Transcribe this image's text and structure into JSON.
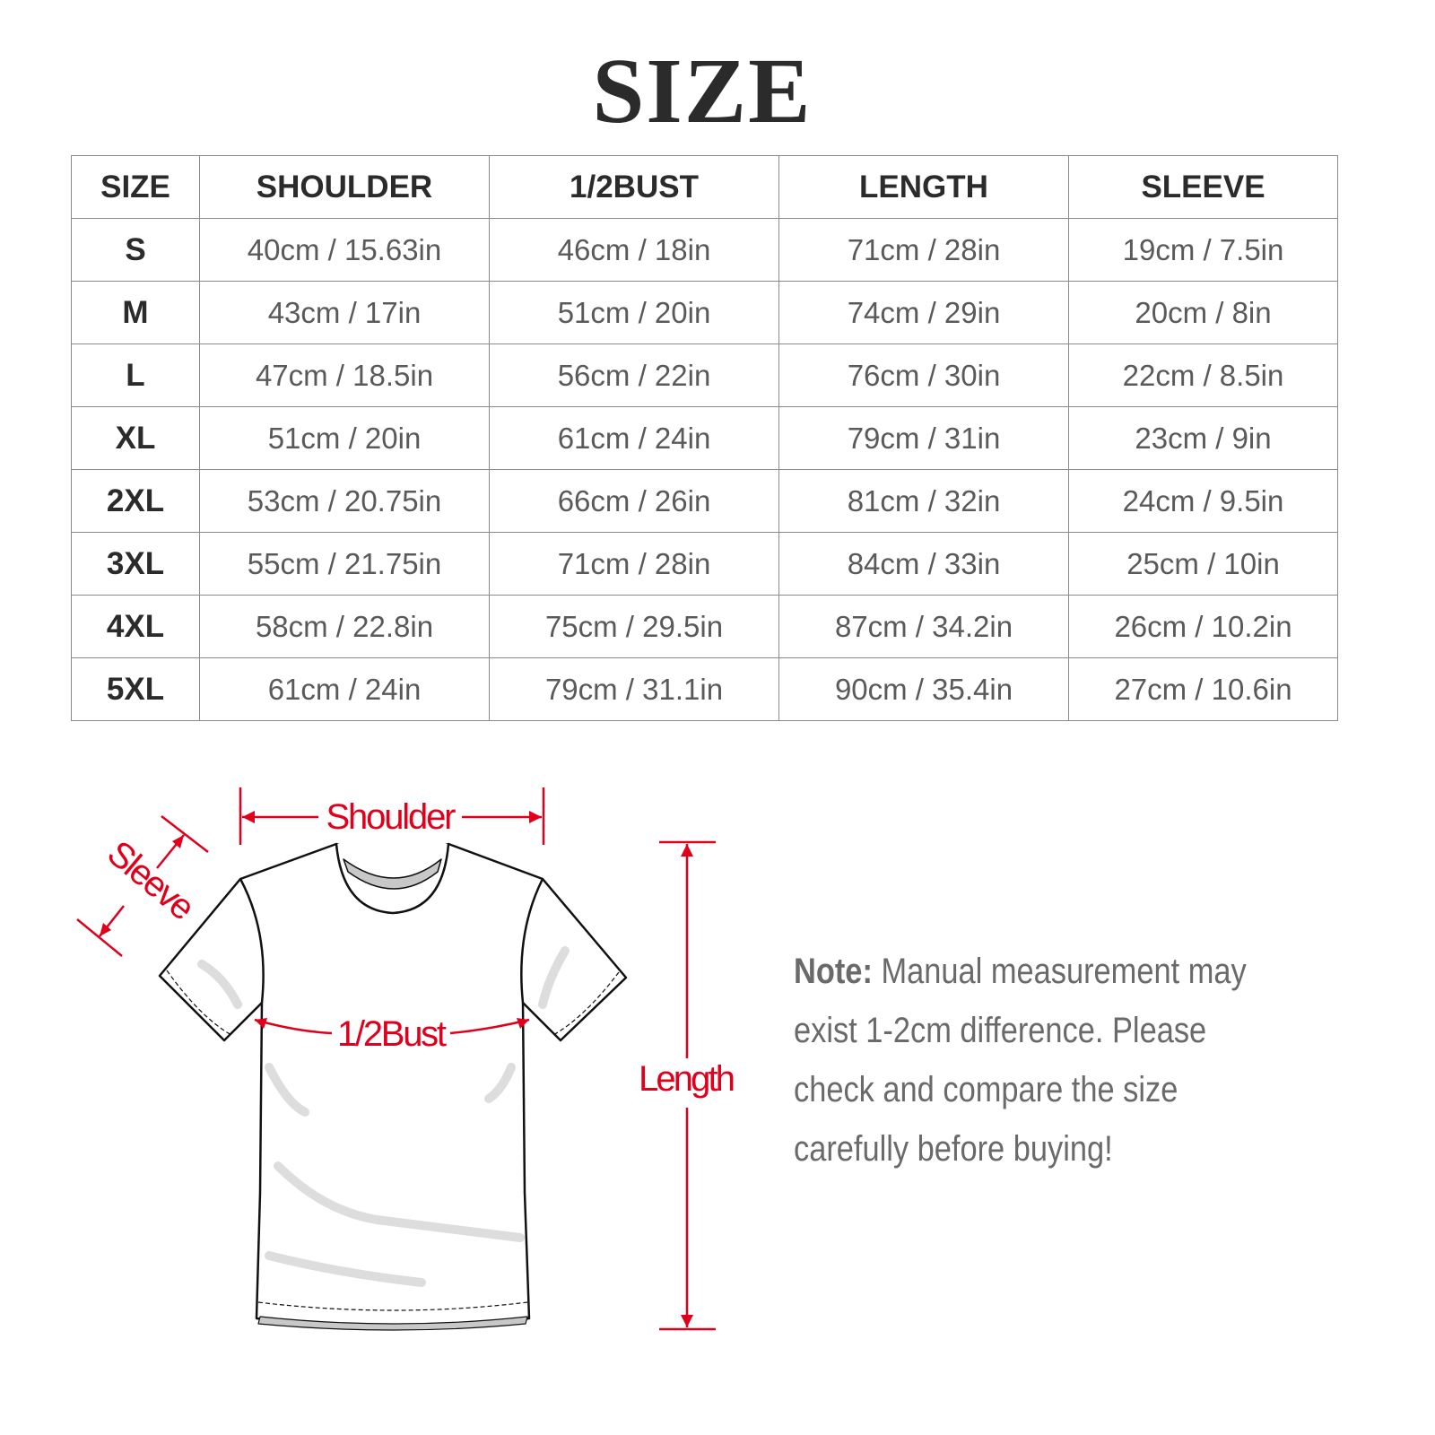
{
  "title": "SIZE",
  "table": {
    "headers": [
      "SIZE",
      "SHOULDER",
      "1/2BUST",
      "LENGTH",
      "SLEEVE"
    ],
    "rows": [
      [
        "S",
        "40cm / 15.63in",
        "46cm / 18in",
        "71cm / 28in",
        "19cm / 7.5in"
      ],
      [
        "M",
        "43cm / 17in",
        "51cm / 20in",
        "74cm / 29in",
        "20cm / 8in"
      ],
      [
        "L",
        "47cm / 18.5in",
        "56cm / 22in",
        "76cm / 30in",
        "22cm / 8.5in"
      ],
      [
        "XL",
        "51cm / 20in",
        "61cm / 24in",
        "79cm / 31in",
        "23cm / 9in"
      ],
      [
        "2XL",
        "53cm / 20.75in",
        "66cm / 26in",
        "81cm / 32in",
        "24cm / 9.5in"
      ],
      [
        "3XL",
        "55cm / 21.75in",
        "71cm / 28in",
        "84cm / 33in",
        "25cm / 10in"
      ],
      [
        "4XL",
        "58cm / 22.8in",
        "75cm / 29.5in",
        "87cm / 34.2in",
        "26cm / 10.2in"
      ],
      [
        "5XL",
        "61cm / 24in",
        "79cm / 31.1in",
        "90cm / 35.4in",
        "27cm / 10.6in"
      ]
    ]
  },
  "diagram": {
    "labels": {
      "shoulder": "Shoulder",
      "sleeve": "Sleeve",
      "bust": "1/2Bust",
      "length": "Length"
    },
    "accent_color": "#e0001b"
  },
  "note": {
    "label": "Note:",
    "lines": [
      " Manual measurement may",
      "exist 1-2cm difference. Please",
      "check and compare the size",
      "carefully before buying!"
    ]
  }
}
